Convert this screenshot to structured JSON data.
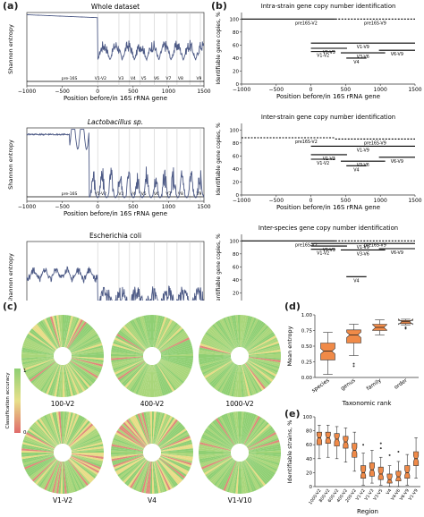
{
  "labels": {
    "a": "(a)",
    "b": "(b)",
    "c": "(c)",
    "d": "(d)",
    "e": "(e)"
  },
  "colors": {
    "line": "#4d5a86",
    "segment": "#000000",
    "box": "#f08a48",
    "wheelGreen": "#8fcf73",
    "wheelRed": "#e06a6a",
    "wheelYellow": "#e8e08a"
  },
  "panel_a": {
    "ylabel": "Shannon entropy",
    "xlabel": "Position before/in 16S rRNA gene",
    "xticks": [
      "−1000",
      "−500",
      "0",
      "500",
      "1000",
      "1500"
    ],
    "region_labels": [
      "pre-16S",
      "V1-V2",
      "V3",
      "V4",
      "V5",
      "V6",
      "V7",
      "V8",
      "V9"
    ],
    "plots": [
      {
        "title": "Whole dataset",
        "italic": false
      },
      {
        "title": "Lactobacillus sp.",
        "italic": true
      },
      {
        "title": "Escherichia coli",
        "italic": false
      }
    ]
  },
  "panel_b": {
    "ylabel": "Identifiable gene copies, %",
    "xlabel": "Position before/in 16S rRNA gene",
    "xticks": [
      "−1000",
      "−500",
      "0",
      "500",
      "1000",
      "1500"
    ],
    "yticks": [
      "0",
      "20",
      "40",
      "60",
      "80",
      "100"
    ],
    "plots": [
      {
        "title": "Intra-strain gene copy number identification",
        "segments": [
          {
            "label": "pre16S-V2",
            "x1": -1000,
            "x2": 350,
            "y": 100,
            "dashed": false
          },
          {
            "label": "pre16S-V9",
            "x1": 350,
            "x2": 1500,
            "y": 100,
            "dashed": true
          },
          {
            "label": "V1-V9",
            "x1": 0,
            "x2": 1500,
            "y": 63,
            "dashed": false
          },
          {
            "label": "V1-V3",
            "x1": 0,
            "x2": 520,
            "y": 55,
            "dashed": false
          },
          {
            "label": "V1-V2",
            "x1": 0,
            "x2": 350,
            "y": 50,
            "dashed": false
          },
          {
            "label": "V3-V6",
            "x1": 430,
            "x2": 1070,
            "y": 48,
            "dashed": false
          },
          {
            "label": "V6-V9",
            "x1": 980,
            "x2": 1500,
            "y": 52,
            "dashed": false
          },
          {
            "label": "V4",
            "x1": 510,
            "x2": 800,
            "y": 40,
            "dashed": false
          }
        ]
      },
      {
        "title": "Inter-strain gene copy number identification",
        "segments": [
          {
            "label": "pre16S-V2",
            "x1": -1000,
            "x2": 350,
            "y": 88,
            "dashed": true
          },
          {
            "label": "pre16S-V9",
            "x1": 350,
            "x2": 1500,
            "y": 86,
            "dashed": true
          },
          {
            "label": "V1-V9",
            "x1": 0,
            "x2": 1500,
            "y": 75,
            "dashed": false
          },
          {
            "label": "V1-V3",
            "x1": 0,
            "x2": 520,
            "y": 62,
            "dashed": false
          },
          {
            "label": "V1-V2",
            "x1": 0,
            "x2": 350,
            "y": 55,
            "dashed": false
          },
          {
            "label": "V3-V6",
            "x1": 430,
            "x2": 1070,
            "y": 52,
            "dashed": false
          },
          {
            "label": "V6-V9",
            "x1": 980,
            "x2": 1500,
            "y": 58,
            "dashed": false
          },
          {
            "label": "V4",
            "x1": 510,
            "x2": 800,
            "y": 45,
            "dashed": false
          }
        ]
      },
      {
        "title": "Inter-species gene copy number identification",
        "segments": [
          {
            "label": "pre16S-V2",
            "x1": -1000,
            "x2": 350,
            "y": 100,
            "dashed": false
          },
          {
            "label": "pre16S-V9",
            "x1": 350,
            "x2": 1500,
            "y": 100,
            "dashed": true
          },
          {
            "label": "V1-V9",
            "x1": 0,
            "x2": 1500,
            "y": 96,
            "dashed": false
          },
          {
            "label": "V1-V3",
            "x1": 0,
            "x2": 520,
            "y": 92,
            "dashed": false
          },
          {
            "label": "V1-V2",
            "x1": 0,
            "x2": 350,
            "y": 87,
            "dashed": false
          },
          {
            "label": "V3-V6",
            "x1": 430,
            "x2": 1070,
            "y": 86,
            "dashed": false
          },
          {
            "label": "V6-V9",
            "x1": 980,
            "x2": 1500,
            "y": 88,
            "dashed": false
          },
          {
            "label": "V4",
            "x1": 510,
            "x2": 800,
            "y": 45,
            "dashed": false
          }
        ]
      }
    ]
  },
  "panel_c": {
    "colorbar_label": "Classification accuracy",
    "colorbar_ticks": [
      "1",
      "0"
    ],
    "wheels": [
      {
        "label": "100-V2",
        "green": 0.75
      },
      {
        "label": "400-V2",
        "green": 0.85
      },
      {
        "label": "1000-V2",
        "green": 0.9
      },
      {
        "label": "V1-V2",
        "green": 0.7
      },
      {
        "label": "V4",
        "green": 0.55
      },
      {
        "label": "V1-V10",
        "green": 0.92
      }
    ]
  },
  "chart_data": [
    {
      "type": "box",
      "panel": "d",
      "ylabel": "Mean entropy",
      "xlabel": "Taxonomic rank",
      "ylim": [
        0,
        1.0
      ],
      "yticks": [
        "0.00",
        "0.25",
        "0.50",
        "0.75",
        "1.00"
      ],
      "categories": [
        "species",
        "genus",
        "family",
        "order"
      ],
      "boxes": [
        {
          "min": 0.05,
          "q1": 0.28,
          "median": 0.42,
          "q3": 0.55,
          "max": 0.72,
          "outliers": []
        },
        {
          "min": 0.35,
          "q1": 0.55,
          "median": 0.68,
          "q3": 0.76,
          "max": 0.85,
          "outliers": [
            0.22,
            0.18
          ]
        },
        {
          "min": 0.68,
          "q1": 0.75,
          "median": 0.8,
          "q3": 0.85,
          "max": 0.92,
          "outliers": []
        },
        {
          "min": 0.84,
          "q1": 0.86,
          "median": 0.89,
          "q3": 0.91,
          "max": 0.93,
          "outliers": [
            0.78,
            0.8
          ]
        }
      ]
    },
    {
      "type": "box",
      "panel": "e",
      "ylabel": "Identifiable strains, %",
      "xlabel": "Region",
      "ylim": [
        0,
        100
      ],
      "yticks": [
        "0",
        "20",
        "40",
        "60",
        "80",
        "100"
      ],
      "categories": [
        "1000-V2",
        "800-V2",
        "600-V2",
        "400-V2",
        "200-V2",
        "V1-V2",
        "V1-V3",
        "V3-V5",
        "V4",
        "V4-V6",
        "V6-V9",
        "V1-V9"
      ],
      "boxes": [
        {
          "min": 40,
          "q1": 60,
          "median": 70,
          "q3": 78,
          "max": 88,
          "outliers": []
        },
        {
          "min": 42,
          "q1": 62,
          "median": 70,
          "q3": 78,
          "max": 88,
          "outliers": []
        },
        {
          "min": 40,
          "q1": 58,
          "median": 68,
          "q3": 76,
          "max": 86,
          "outliers": []
        },
        {
          "min": 35,
          "q1": 55,
          "median": 64,
          "q3": 72,
          "max": 84,
          "outliers": []
        },
        {
          "min": 22,
          "q1": 42,
          "median": 52,
          "q3": 62,
          "max": 78,
          "outliers": []
        },
        {
          "min": 2,
          "q1": 12,
          "median": 20,
          "q3": 30,
          "max": 48,
          "outliers": [
            60
          ]
        },
        {
          "min": 5,
          "q1": 15,
          "median": 24,
          "q3": 34,
          "max": 52,
          "outliers": []
        },
        {
          "min": 2,
          "q1": 10,
          "median": 18,
          "q3": 28,
          "max": 42,
          "outliers": [
            55,
            62
          ]
        },
        {
          "min": 0,
          "q1": 5,
          "median": 10,
          "q3": 18,
          "max": 30,
          "outliers": [
            45
          ]
        },
        {
          "min": 0,
          "q1": 8,
          "median": 14,
          "q3": 22,
          "max": 36,
          "outliers": [
            50
          ]
        },
        {
          "min": 2,
          "q1": 12,
          "median": 20,
          "q3": 30,
          "max": 46,
          "outliers": []
        },
        {
          "min": 12,
          "q1": 30,
          "median": 40,
          "q3": 50,
          "max": 70,
          "outliers": []
        }
      ]
    }
  ]
}
